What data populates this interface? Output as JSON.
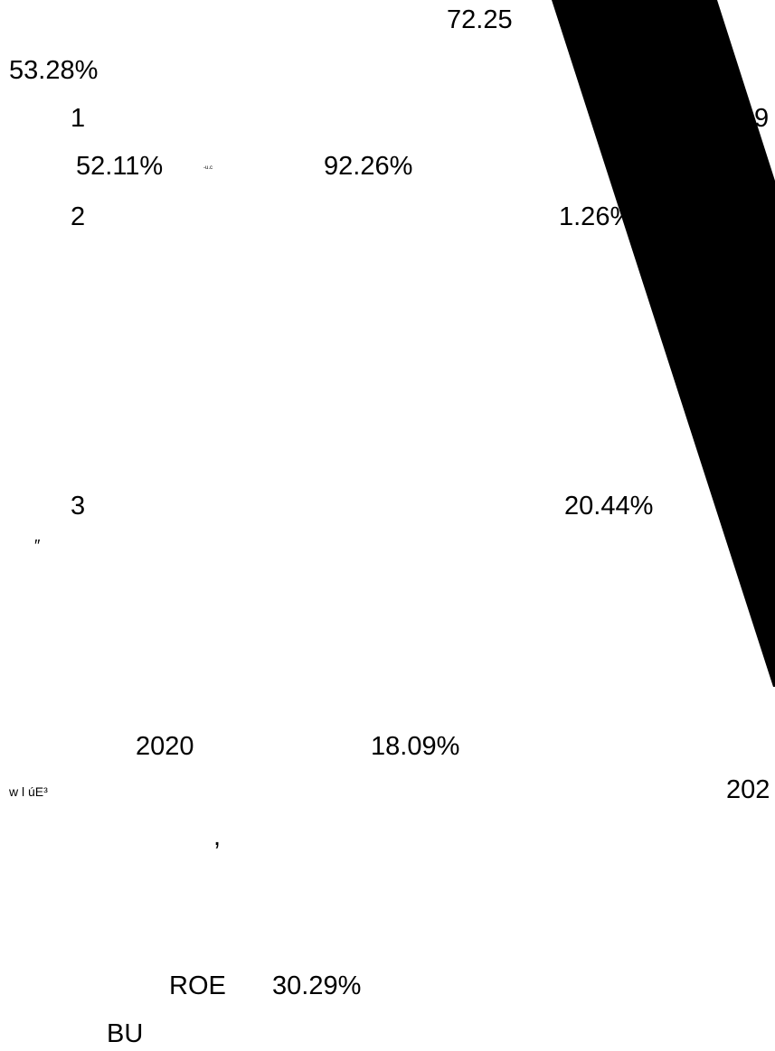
{
  "fragments": {
    "top_value": "72.25",
    "pct_upper_left": "53.28%",
    "item_1": "1",
    "pct_row_1": "52.11%",
    "tiny_marker": "-u.c",
    "pct_row_1_right": "92.26%",
    "edge_digit": "9",
    "item_2": "2",
    "pct_row_2_right": "1.26%",
    "item_3": "3",
    "pct_row_3_right": "20.44%",
    "quote_mark": "″",
    "year_left": "2020",
    "pct_year_row": "18.09%",
    "garbled_label": "w l úE³",
    "year_right_cut": "202",
    "comma": ",",
    "roe_label": "ROE",
    "roe_value": "30.29%",
    "bu_label": "BU"
  },
  "colors": {
    "background": "#ffffff",
    "text": "#000000",
    "stripe": "#000000"
  }
}
